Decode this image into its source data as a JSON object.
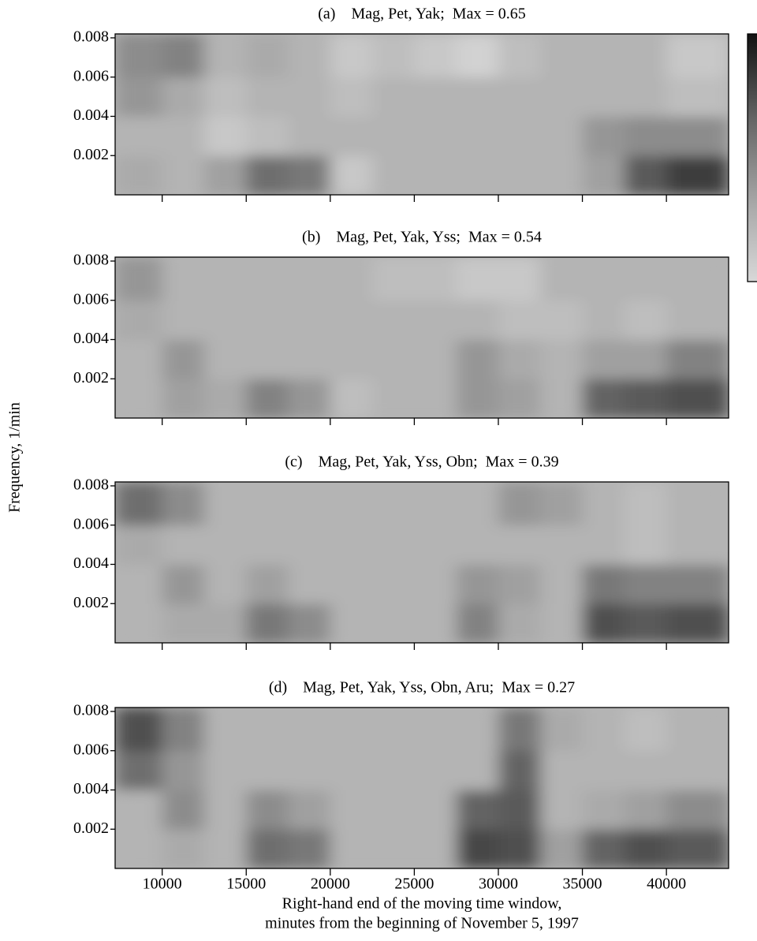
{
  "chart_data": [
    {
      "type": "heatmap",
      "title": "(a)    Mag, Pet, Yak;  Max = 0.65",
      "xlim": [
        7200,
        43700
      ],
      "ylim": [
        0,
        0.0082
      ],
      "xticks": [
        10000,
        15000,
        20000,
        25000,
        30000,
        35000,
        40000
      ],
      "yticks": [
        0.002,
        0.004,
        0.006,
        0.008
      ],
      "xbins": [
        7200,
        10000,
        12500,
        15000,
        17500,
        20000,
        22500,
        25000,
        27500,
        30000,
        32500,
        35000,
        37500,
        40000,
        43700
      ],
      "ybins": [
        0,
        0.002,
        0.004,
        0.006,
        0.0082
      ],
      "z": [
        [
          0.35,
          0.3,
          0.4,
          0.65,
          0.6,
          0.2,
          0.3,
          0.3,
          0.3,
          0.3,
          0.3,
          0.4,
          0.75,
          0.9
        ],
        [
          0.3,
          0.3,
          0.2,
          0.25,
          0.3,
          0.3,
          0.3,
          0.3,
          0.3,
          0.3,
          0.3,
          0.45,
          0.5,
          0.5
        ],
        [
          0.45,
          0.35,
          0.25,
          0.3,
          0.3,
          0.25,
          0.3,
          0.3,
          0.3,
          0.3,
          0.3,
          0.3,
          0.3,
          0.25
        ],
        [
          0.5,
          0.55,
          0.3,
          0.35,
          0.3,
          0.2,
          0.25,
          0.2,
          0.15,
          0.25,
          0.3,
          0.3,
          0.3,
          0.2
        ]
      ]
    },
    {
      "type": "heatmap",
      "title": "(b)    Mag, Pet, Yak, Yss;  Max = 0.54",
      "xlim": [
        7200,
        43700
      ],
      "ylim": [
        0,
        0.0082
      ],
      "xticks": [
        10000,
        15000,
        20000,
        25000,
        30000,
        35000,
        40000
      ],
      "yticks": [
        0.002,
        0.004,
        0.006,
        0.008
      ],
      "xbins": [
        7200,
        10000,
        12500,
        15000,
        17500,
        20000,
        22500,
        25000,
        27500,
        30000,
        32500,
        35000,
        37500,
        40000,
        43700
      ],
      "ybins": [
        0,
        0.002,
        0.004,
        0.006,
        0.0082
      ],
      "z": [
        [
          0.3,
          0.4,
          0.35,
          0.55,
          0.45,
          0.25,
          0.3,
          0.3,
          0.45,
          0.4,
          0.3,
          0.7,
          0.75,
          0.8
        ],
        [
          0.3,
          0.45,
          0.3,
          0.3,
          0.3,
          0.3,
          0.3,
          0.3,
          0.45,
          0.35,
          0.3,
          0.4,
          0.4,
          0.55
        ],
        [
          0.35,
          0.3,
          0.3,
          0.3,
          0.3,
          0.3,
          0.3,
          0.3,
          0.3,
          0.25,
          0.25,
          0.3,
          0.25,
          0.3
        ],
        [
          0.45,
          0.3,
          0.3,
          0.3,
          0.3,
          0.3,
          0.25,
          0.25,
          0.2,
          0.2,
          0.3,
          0.3,
          0.3,
          0.3
        ]
      ]
    },
    {
      "type": "heatmap",
      "title": "(c)    Mag, Pet, Yak, Yss, Obn;  Max = 0.39",
      "xlim": [
        7200,
        43700
      ],
      "ylim": [
        0,
        0.0082
      ],
      "xticks": [
        10000,
        15000,
        20000,
        25000,
        30000,
        35000,
        40000
      ],
      "yticks": [
        0.002,
        0.004,
        0.006,
        0.008
      ],
      "xbins": [
        7200,
        10000,
        12500,
        15000,
        17500,
        20000,
        22500,
        25000,
        27500,
        30000,
        32500,
        35000,
        37500,
        40000,
        43700
      ],
      "ybins": [
        0,
        0.002,
        0.004,
        0.006,
        0.0082
      ],
      "z": [
        [
          0.3,
          0.35,
          0.35,
          0.6,
          0.5,
          0.3,
          0.3,
          0.3,
          0.55,
          0.35,
          0.3,
          0.8,
          0.75,
          0.8
        ],
        [
          0.3,
          0.45,
          0.3,
          0.4,
          0.3,
          0.3,
          0.3,
          0.3,
          0.45,
          0.4,
          0.3,
          0.6,
          0.55,
          0.55
        ],
        [
          0.35,
          0.3,
          0.3,
          0.3,
          0.3,
          0.3,
          0.3,
          0.3,
          0.3,
          0.3,
          0.3,
          0.3,
          0.25,
          0.3
        ],
        [
          0.65,
          0.5,
          0.3,
          0.3,
          0.3,
          0.3,
          0.3,
          0.3,
          0.3,
          0.45,
          0.4,
          0.3,
          0.25,
          0.3
        ]
      ]
    },
    {
      "type": "heatmap",
      "title": "(d)    Mag, Pet, Yak, Yss, Obn, Aru;  Max = 0.27",
      "xlim": [
        7200,
        43700
      ],
      "ylim": [
        0,
        0.0082
      ],
      "xticks": [
        10000,
        15000,
        20000,
        25000,
        30000,
        35000,
        40000
      ],
      "yticks": [
        0.002,
        0.004,
        0.006,
        0.008
      ],
      "show_xtick_labels": true,
      "xbins": [
        7200,
        10000,
        12500,
        15000,
        17500,
        20000,
        22500,
        25000,
        27500,
        30000,
        32500,
        35000,
        37500,
        40000,
        43700
      ],
      "ybins": [
        0,
        0.002,
        0.004,
        0.006,
        0.0082
      ],
      "z": [
        [
          0.3,
          0.35,
          0.3,
          0.65,
          0.6,
          0.3,
          0.3,
          0.3,
          0.85,
          0.8,
          0.4,
          0.7,
          0.8,
          0.75
        ],
        [
          0.3,
          0.5,
          0.3,
          0.5,
          0.4,
          0.3,
          0.3,
          0.3,
          0.7,
          0.75,
          0.3,
          0.35,
          0.4,
          0.5
        ],
        [
          0.65,
          0.45,
          0.3,
          0.3,
          0.3,
          0.3,
          0.3,
          0.3,
          0.3,
          0.7,
          0.3,
          0.3,
          0.3,
          0.3
        ],
        [
          0.8,
          0.55,
          0.3,
          0.3,
          0.3,
          0.3,
          0.3,
          0.3,
          0.3,
          0.6,
          0.35,
          0.3,
          0.25,
          0.3
        ]
      ]
    }
  ],
  "ylabel": "Frequency, 1/min",
  "xlabel": [
    "Right-hand end of the moving time window,",
    "minutes from the beginning of November 5, 1997"
  ]
}
